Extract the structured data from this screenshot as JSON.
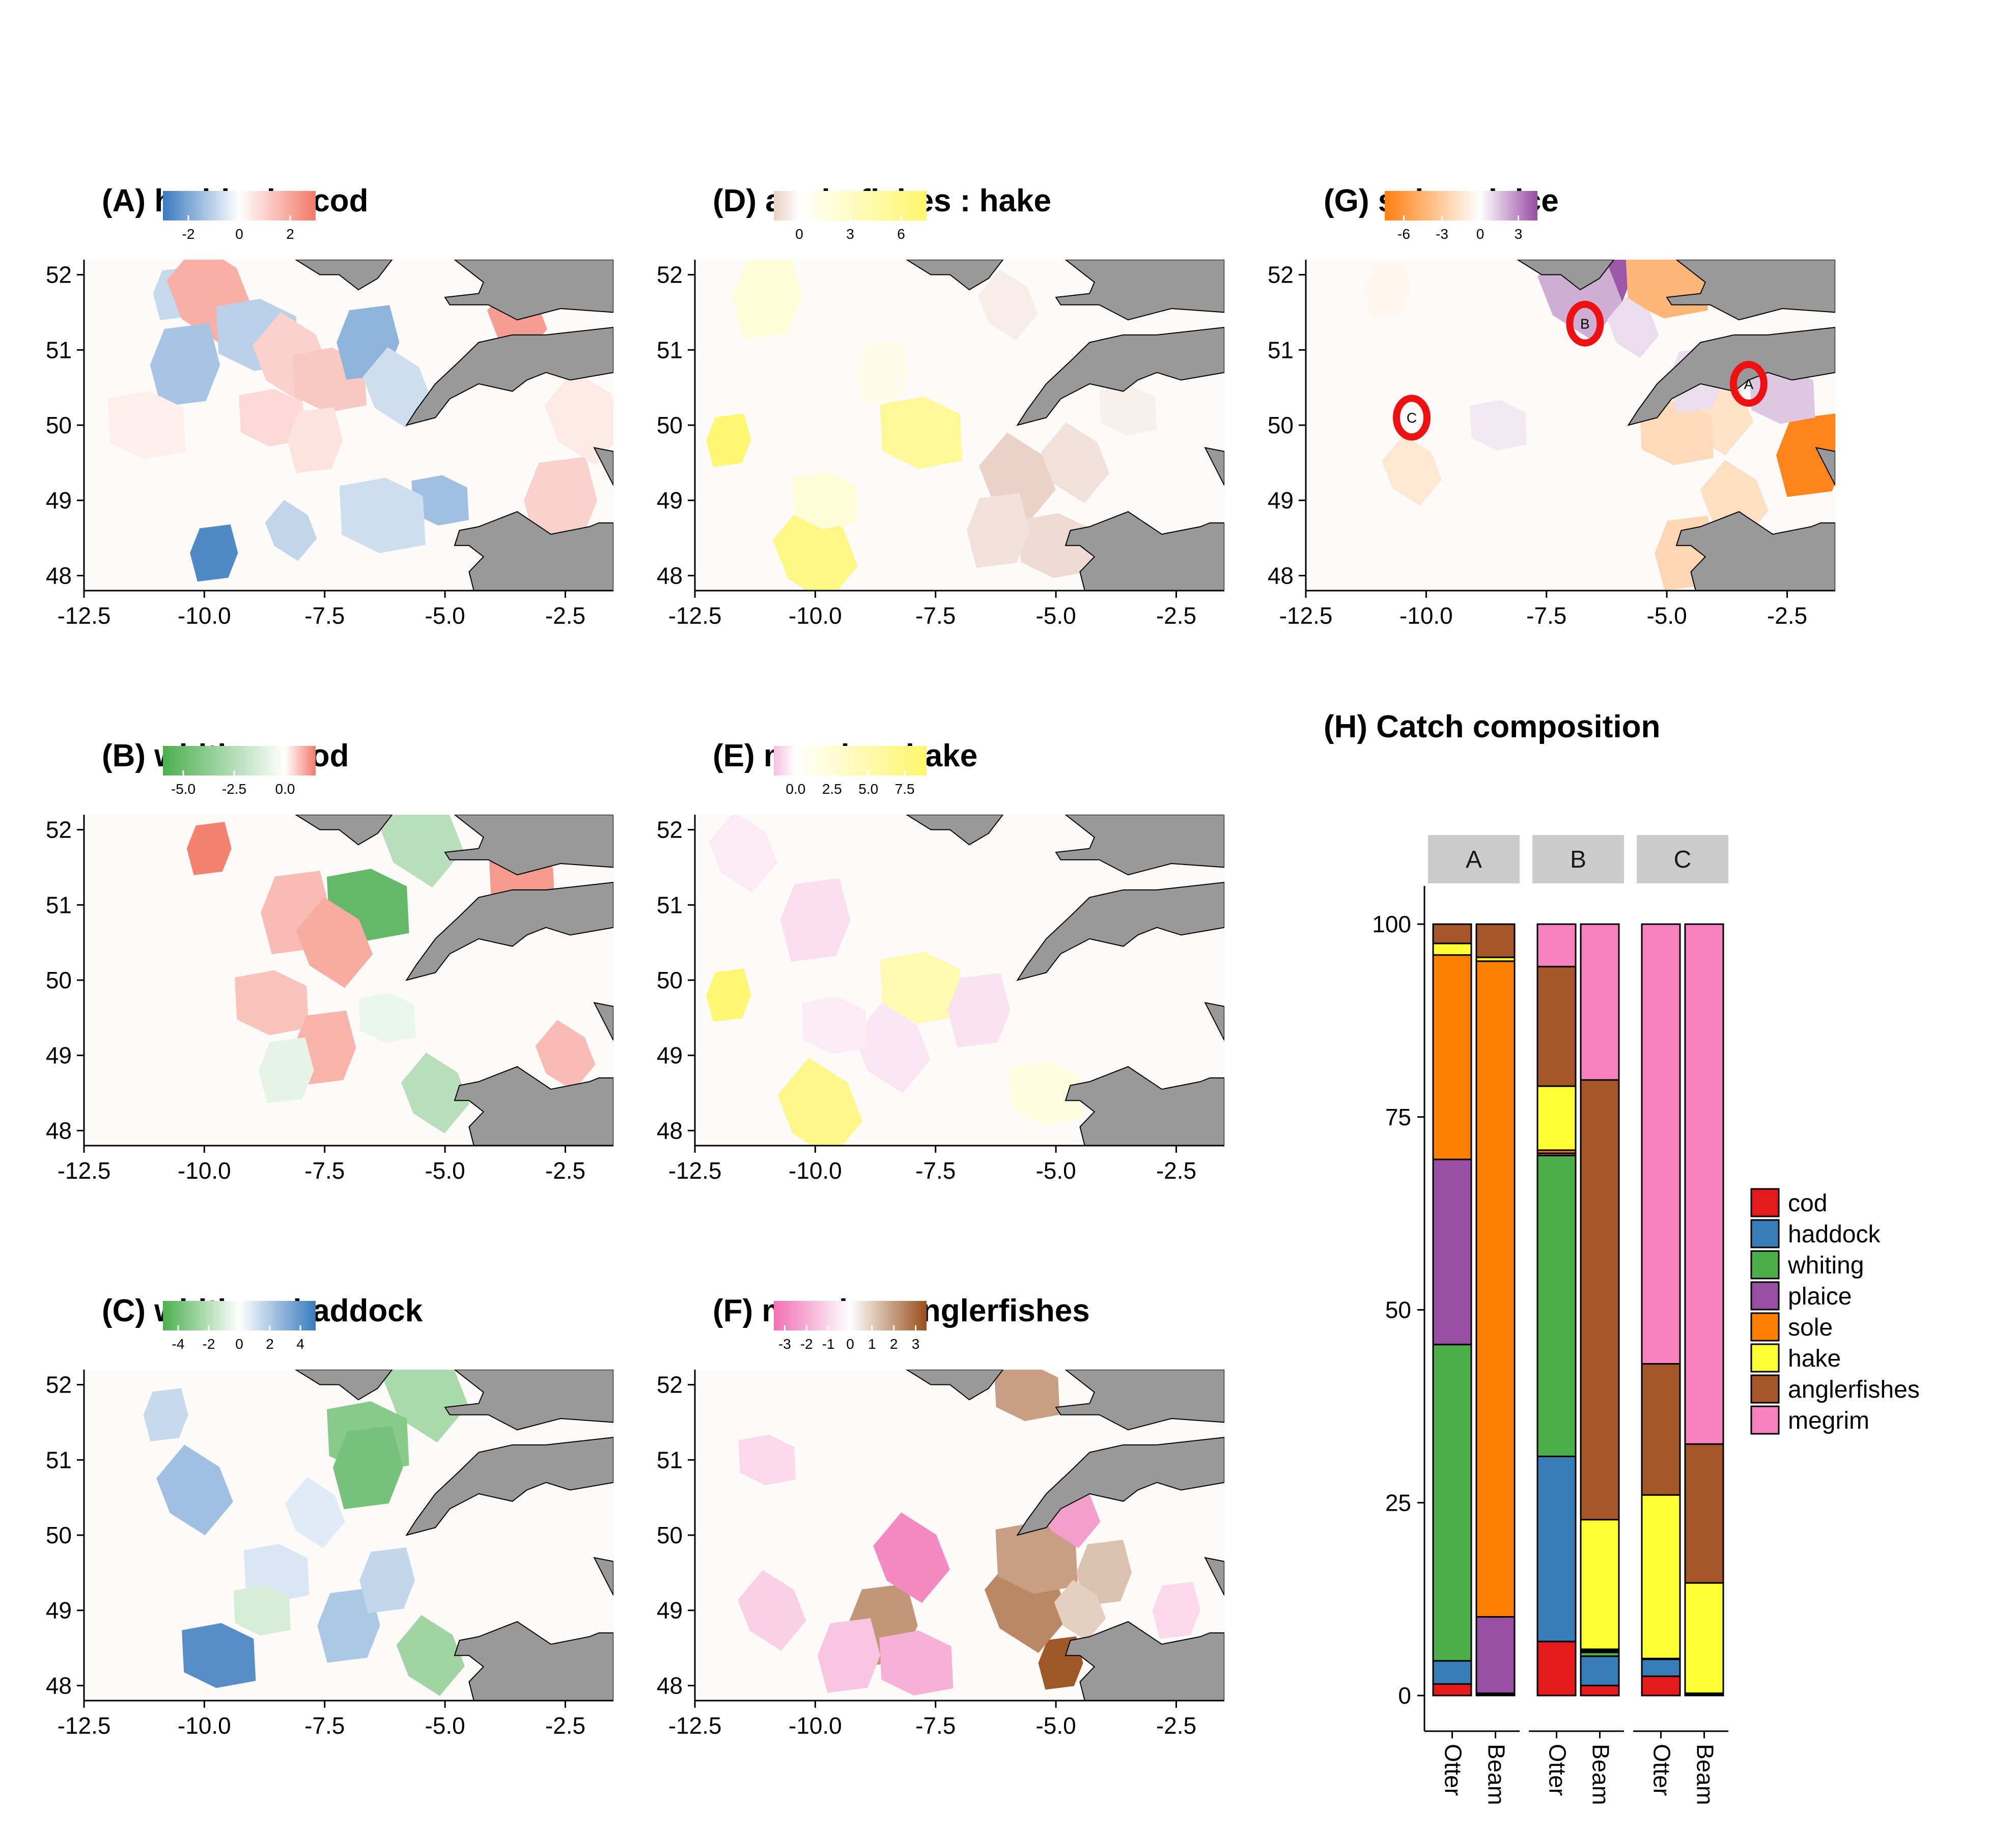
{
  "maps": [
    {
      "id": "A",
      "title": "(A) haddock : cod",
      "legend": {
        "ticks": [
          "-2",
          "0",
          "2"
        ],
        "domain": [
          -3,
          3
        ],
        "colors": [
          "#3a7bbf",
          "#ffffff",
          "#f47a6a"
        ]
      },
      "map": {
        "x_ticks": [
          "-12.5",
          "-10.0",
          "-7.5",
          "-5.0",
          "-2.5"
        ],
        "y_ticks": [
          "52",
          "51",
          "50",
          "49",
          "48"
        ],
        "xlim": [
          -12.5,
          -1.5
        ],
        "ylim": [
          47.8,
          52.2
        ]
      },
      "cells": [
        {
          "lon": -10.6,
          "lat": 51.75,
          "v": -0.9
        },
        {
          "lon": -9.9,
          "lat": 51.75,
          "v": 1.9
        },
        {
          "lon": -8.9,
          "lat": 51.2,
          "v": -1.1
        },
        {
          "lon": -10.4,
          "lat": 50.8,
          "v": -1.4
        },
        {
          "lon": -8.2,
          "lat": 50.9,
          "v": 1.1
        },
        {
          "lon": -7.4,
          "lat": 50.6,
          "v": 1.3
        },
        {
          "lon": -6.6,
          "lat": 51.1,
          "v": -1.8
        },
        {
          "lon": -6.0,
          "lat": 50.5,
          "v": -0.8
        },
        {
          "lon": -8.6,
          "lat": 50.1,
          "v": 0.9
        },
        {
          "lon": -7.7,
          "lat": 49.8,
          "v": 0.7
        },
        {
          "lon": -3.5,
          "lat": 51.4,
          "v": 2.3
        },
        {
          "lon": -5.1,
          "lat": 49.0,
          "v": -1.5
        },
        {
          "lon": -9.8,
          "lat": 48.3,
          "v": -2.8
        },
        {
          "lon": -8.2,
          "lat": 48.6,
          "v": -1.0
        },
        {
          "lon": -6.3,
          "lat": 48.8,
          "v": -0.8
        },
        {
          "lon": -2.6,
          "lat": 49.0,
          "v": 1.1
        },
        {
          "lon": -2.1,
          "lat": 50.1,
          "v": 0.5
        },
        {
          "lon": -11.2,
          "lat": 50.0,
          "v": 0.4
        }
      ]
    },
    {
      "id": "B",
      "title": "(B) whiting : cod",
      "legend": {
        "ticks": [
          "-5.0",
          "-2.5",
          "0.0"
        ],
        "domain": [
          -6,
          1.5
        ],
        "colors": [
          "#4caf50",
          "#ffffff",
          "#f47a6a"
        ]
      },
      "map": {
        "x_ticks": [
          "-12.5",
          "-10.0",
          "-7.5",
          "-5.0",
          "-2.5"
        ],
        "y_ticks": [
          "52",
          "51",
          "50",
          "49",
          "48"
        ],
        "xlim": [
          -12.5,
          -1.5
        ],
        "ylim": [
          47.8,
          52.2
        ]
      },
      "cells": [
        {
          "lon": -9.9,
          "lat": 51.75,
          "v": 1.5
        },
        {
          "lon": -5.5,
          "lat": 51.9,
          "v": -2.5
        },
        {
          "lon": -6.6,
          "lat": 51.0,
          "v": -5.5
        },
        {
          "lon": -8.1,
          "lat": 50.9,
          "v": 0.8
        },
        {
          "lon": -7.3,
          "lat": 50.5,
          "v": 1.0
        },
        {
          "lon": -8.6,
          "lat": 49.7,
          "v": 0.7
        },
        {
          "lon": -7.5,
          "lat": 49.1,
          "v": 0.9
        },
        {
          "lon": -5.2,
          "lat": 48.5,
          "v": -2.5
        },
        {
          "lon": -3.4,
          "lat": 51.3,
          "v": 1.2
        },
        {
          "lon": -8.3,
          "lat": 48.8,
          "v": -0.9
        },
        {
          "lon": -2.5,
          "lat": 49.0,
          "v": 0.8
        },
        {
          "lon": -6.2,
          "lat": 49.5,
          "v": -0.7
        }
      ]
    },
    {
      "id": "C",
      "title": "(C) whiting : haddock",
      "legend": {
        "ticks": [
          "-4",
          "-2",
          "0",
          "2",
          "4"
        ],
        "domain": [
          -5,
          5
        ],
        "colors": [
          "#4caf50",
          "#ffffff",
          "#3a7bbf"
        ]
      },
      "map": {
        "x_ticks": [
          "-12.5",
          "-10.0",
          "-7.5",
          "-5.0",
          "-2.5"
        ],
        "y_ticks": [
          "52",
          "51",
          "50",
          "49",
          "48"
        ],
        "xlim": [
          -12.5,
          -1.5
        ],
        "ylim": [
          47.8,
          52.2
        ]
      },
      "cells": [
        {
          "lon": -10.8,
          "lat": 51.6,
          "v": 1.5
        },
        {
          "lon": -5.4,
          "lat": 51.9,
          "v": -2.5
        },
        {
          "lon": -6.6,
          "lat": 51.3,
          "v": -3.5
        },
        {
          "lon": -6.6,
          "lat": 50.9,
          "v": -4.0
        },
        {
          "lon": -10.2,
          "lat": 50.6,
          "v": 2.5
        },
        {
          "lon": -9.7,
          "lat": 48.4,
          "v": 4.5
        },
        {
          "lon": -7.0,
          "lat": 48.8,
          "v": 2.2
        },
        {
          "lon": -5.3,
          "lat": 48.4,
          "v": -2.8
        },
        {
          "lon": -8.5,
          "lat": 49.5,
          "v": 1.0
        },
        {
          "lon": -6.2,
          "lat": 49.4,
          "v": 1.6
        },
        {
          "lon": -7.7,
          "lat": 50.3,
          "v": 0.8
        },
        {
          "lon": -8.8,
          "lat": 49.0,
          "v": -1.2
        }
      ]
    },
    {
      "id": "D",
      "title": "(D) anglerfishes : hake",
      "legend": {
        "ticks": [
          "0",
          "3",
          "6"
        ],
        "domain": [
          -1.5,
          7.5
        ],
        "colors": [
          "#ead0c4",
          "#ffffff",
          "#fff56b"
        ]
      },
      "map": {
        "x_ticks": [
          "-12.5",
          "-10.0",
          "-7.5",
          "-5.0",
          "-2.5"
        ],
        "y_ticks": [
          "52",
          "51",
          "50",
          "49",
          "48"
        ],
        "xlim": [
          -12.5,
          -1.5
        ],
        "ylim": [
          47.8,
          52.2
        ]
      },
      "cells": [
        {
          "lon": -11.8,
          "lat": 49.8,
          "v": 7.5
        },
        {
          "lon": -10.0,
          "lat": 48.3,
          "v": 6.5
        },
        {
          "lon": -7.8,
          "lat": 49.9,
          "v": 5.5
        },
        {
          "lon": -11.0,
          "lat": 51.7,
          "v": 2.0
        },
        {
          "lon": -5.8,
          "lat": 49.3,
          "v": -1.5
        },
        {
          "lon": -5.0,
          "lat": 48.4,
          "v": -1.2
        },
        {
          "lon": -6.2,
          "lat": 48.6,
          "v": -1.0
        },
        {
          "lon": -4.6,
          "lat": 49.5,
          "v": -1.0
        },
        {
          "lon": -9.8,
          "lat": 49.0,
          "v": 2.0
        },
        {
          "lon": -8.6,
          "lat": 50.7,
          "v": 1.2
        },
        {
          "lon": -6.0,
          "lat": 51.6,
          "v": -0.6
        },
        {
          "lon": -3.5,
          "lat": 50.2,
          "v": -0.5
        }
      ]
    },
    {
      "id": "E",
      "title": "(E) megrim : hake",
      "legend": {
        "ticks": [
          "0.0",
          "2.5",
          "5.0",
          "7.5"
        ],
        "domain": [
          -1.5,
          9
        ],
        "colors": [
          "#f7bde0",
          "#ffffff",
          "#fff56b"
        ]
      },
      "map": {
        "x_ticks": [
          "-12.5",
          "-10.0",
          "-7.5",
          "-5.0",
          "-2.5"
        ],
        "y_ticks": [
          "52",
          "51",
          "50",
          "49",
          "48"
        ],
        "xlim": [
          -12.5,
          -1.5
        ],
        "ylim": [
          47.8,
          52.2
        ]
      },
      "cells": [
        {
          "lon": -11.8,
          "lat": 49.8,
          "v": 9.0
        },
        {
          "lon": -9.9,
          "lat": 48.3,
          "v": 7.5
        },
        {
          "lon": -7.8,
          "lat": 49.9,
          "v": 5.0
        },
        {
          "lon": -10.0,
          "lat": 50.8,
          "v": -0.8
        },
        {
          "lon": -8.4,
          "lat": 49.1,
          "v": -0.6
        },
        {
          "lon": -5.2,
          "lat": 48.5,
          "v": 2.0
        },
        {
          "lon": -6.6,
          "lat": 49.6,
          "v": -0.7
        },
        {
          "lon": -11.5,
          "lat": 51.7,
          "v": -0.5
        },
        {
          "lon": -9.6,
          "lat": 49.4,
          "v": -0.5
        }
      ]
    },
    {
      "id": "F",
      "title": "(F) megrim : anglerfishes",
      "legend": {
        "ticks": [
          "-3",
          "-2",
          "-1",
          "0",
          "1",
          "2",
          "3"
        ],
        "domain": [
          -3.5,
          3.5
        ],
        "colors": [
          "#f070b4",
          "#ffffff",
          "#9a4f1c"
        ]
      },
      "map": {
        "x_ticks": [
          "-12.5",
          "-10.0",
          "-7.5",
          "-5.0",
          "-2.5"
        ],
        "y_ticks": [
          "52",
          "51",
          "50",
          "49",
          "48"
        ],
        "xlim": [
          -12.5,
          -1.5
        ],
        "ylim": [
          47.8,
          52.2
        ]
      },
      "cells": [
        {
          "lon": -4.9,
          "lat": 48.3,
          "v": 3.5
        },
        {
          "lon": -5.6,
          "lat": 49.1,
          "v": 2.5
        },
        {
          "lon": -5.4,
          "lat": 49.7,
          "v": 2.0
        },
        {
          "lon": -8.6,
          "lat": 48.8,
          "v": 2.2
        },
        {
          "lon": -8.0,
          "lat": 49.7,
          "v": -3.0
        },
        {
          "lon": -7.9,
          "lat": 48.3,
          "v": -2.0
        },
        {
          "lon": -9.3,
          "lat": 48.4,
          "v": -1.5
        },
        {
          "lon": -10.9,
          "lat": 49.0,
          "v": -1.2
        },
        {
          "lon": -5.6,
          "lat": 51.9,
          "v": 2.0
        },
        {
          "lon": -4.0,
          "lat": 49.5,
          "v": 1.3
        },
        {
          "lon": -4.7,
          "lat": 50.3,
          "v": -2.5
        },
        {
          "lon": -11.0,
          "lat": 51.0,
          "v": -1.0
        },
        {
          "lon": -2.5,
          "lat": 49.0,
          "v": -1.0
        },
        {
          "lon": -4.5,
          "lat": 49.0,
          "v": 1.0
        }
      ]
    },
    {
      "id": "G",
      "title": "(G) sole : plaice",
      "legend": {
        "ticks": [
          "-6",
          "-3",
          "0",
          "3"
        ],
        "domain": [
          -7.5,
          4.5
        ],
        "colors": [
          "#ff7f0e",
          "#ffffff",
          "#984ea3"
        ]
      },
      "map": {
        "x_ticks": [
          "-12.5",
          "-10.0",
          "-7.5",
          "-5.0",
          "-2.5"
        ],
        "y_ticks": [
          "52",
          "51",
          "50",
          "49",
          "48"
        ],
        "xlim": [
          -12.5,
          -1.5
        ],
        "ylim": [
          47.8,
          52.2
        ]
      },
      "cells": [
        {
          "lon": -6.2,
          "lat": 51.95,
          "v": 4.5
        },
        {
          "lon": -6.8,
          "lat": 51.8,
          "v": 2.2
        },
        {
          "lon": -5.0,
          "lat": 51.9,
          "v": -4.5
        },
        {
          "lon": -2.0,
          "lat": 49.6,
          "v": -7.5
        },
        {
          "lon": -4.0,
          "lat": 50.2,
          "v": -1.8
        },
        {
          "lon": -4.8,
          "lat": 49.9,
          "v": -2.3
        },
        {
          "lon": -4.6,
          "lat": 48.3,
          "v": -2.5
        },
        {
          "lon": -3.6,
          "lat": 49.0,
          "v": -2.0
        },
        {
          "lon": -2.6,
          "lat": 50.4,
          "v": 1.5
        },
        {
          "lon": -4.4,
          "lat": 50.6,
          "v": 0.9
        },
        {
          "lon": -10.3,
          "lat": 49.4,
          "v": -1.5
        },
        {
          "lon": -8.5,
          "lat": 50.0,
          "v": 0.6
        },
        {
          "lon": -10.8,
          "lat": 51.8,
          "v": -0.5
        },
        {
          "lon": -5.7,
          "lat": 51.3,
          "v": 0.9
        }
      ],
      "markers": [
        {
          "label": "B",
          "lon": -6.7,
          "lat": 51.35
        },
        {
          "label": "A",
          "lon": -3.3,
          "lat": 50.55
        },
        {
          "label": "C",
          "lon": -10.3,
          "lat": 50.1
        }
      ]
    }
  ],
  "chart_data": {
    "type": "bar",
    "title": "(H) Catch composition",
    "stacked": true,
    "facets": [
      "A",
      "B",
      "C"
    ],
    "categories": [
      "Otter",
      "Beam"
    ],
    "ylim": [
      0,
      100
    ],
    "y_ticks": [
      "0",
      "25",
      "50",
      "75",
      "100"
    ],
    "legend_position": "right",
    "series": [
      {
        "name": "cod",
        "color": "#e41a1c",
        "values": {
          "A": [
            1.5,
            0.2
          ],
          "B": [
            7,
            1.3
          ],
          "C": [
            2.5,
            0.2
          ]
        }
      },
      {
        "name": "haddock",
        "color": "#377eb8",
        "values": {
          "A": [
            3,
            0.1
          ],
          "B": [
            24,
            3.8
          ],
          "C": [
            2.2,
            0.1
          ]
        }
      },
      {
        "name": "whiting",
        "color": "#4daf4a",
        "values": {
          "A": [
            41,
            0
          ],
          "B": [
            39,
            0.5
          ],
          "C": [
            0.1,
            0
          ]
        }
      },
      {
        "name": "plaice",
        "color": "#984ea3",
        "values": {
          "A": [
            24,
            9.9
          ],
          "B": [
            0.3,
            0.2
          ],
          "C": [
            0,
            0
          ]
        }
      },
      {
        "name": "sole",
        "color": "#ff7f00",
        "values": {
          "A": [
            26.5,
            85
          ],
          "B": [
            0.4,
            0.2
          ],
          "C": [
            0,
            0
          ]
        }
      },
      {
        "name": "hake",
        "color": "#ffff33",
        "values": {
          "A": [
            1.5,
            0.5
          ],
          "B": [
            8.3,
            16.8
          ],
          "C": [
            21.2,
            14.3
          ]
        }
      },
      {
        "name": "anglerfishes",
        "color": "#a65628",
        "values": {
          "A": [
            2.5,
            4.3
          ],
          "B": [
            15.5,
            57
          ],
          "C": [
            17,
            18
          ]
        }
      },
      {
        "name": "megrim",
        "color": "#f781bf",
        "values": {
          "A": [
            0,
            0
          ],
          "B": [
            5.5,
            20.2
          ],
          "C": [
            57,
            67.4
          ]
        }
      }
    ]
  }
}
